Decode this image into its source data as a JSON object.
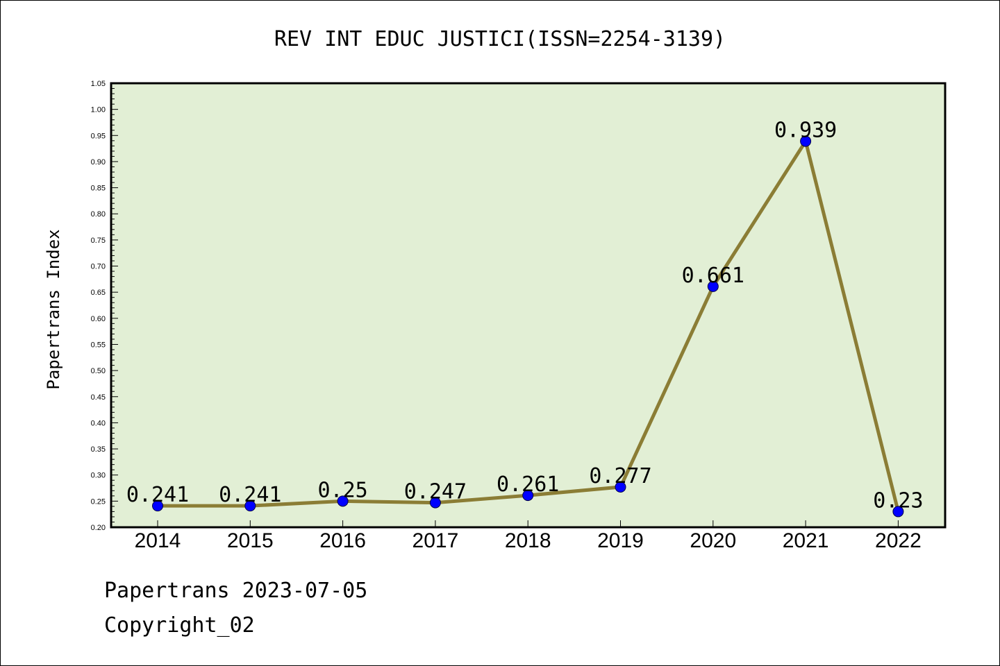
{
  "chart_data": {
    "type": "line",
    "title": "REV INT EDUC JUSTICI(ISSN=2254-3139)",
    "xlabel": "",
    "ylabel": "Papertrans Index",
    "categories": [
      "2014",
      "2015",
      "2016",
      "2017",
      "2018",
      "2019",
      "2020",
      "2021",
      "2022"
    ],
    "values": [
      0.241,
      0.241,
      0.25,
      0.247,
      0.261,
      0.277,
      0.661,
      0.939,
      0.23
    ],
    "data_labels": [
      "0.241",
      "0.241",
      "0.25",
      "0.247",
      "0.261",
      "0.277",
      "0.661",
      "0.939",
      "0.23"
    ],
    "ylim": [
      0.2,
      1.05
    ],
    "yticks": [
      "0.20",
      "0.25",
      "0.30",
      "0.35",
      "0.40",
      "0.45",
      "0.50",
      "0.55",
      "0.60",
      "0.65",
      "0.70",
      "0.75",
      "0.80",
      "0.85",
      "0.90",
      "0.95",
      "1.00",
      "1.05"
    ],
    "grid": false,
    "colors": {
      "plot_background": "#e2efd5",
      "line": "#8b7d35",
      "marker": "#0000ff"
    }
  },
  "footer": {
    "source": "Papertrans 2023-07-05",
    "copyright": "Copyright_02"
  }
}
